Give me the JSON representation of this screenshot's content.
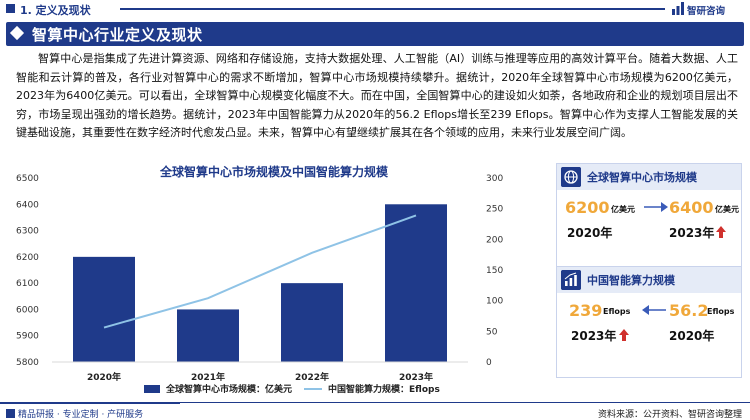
{
  "header": {
    "section_title": "1. 定义及现状",
    "brand": "智研咨询"
  },
  "banner": {
    "title": "智算中心行业定义及现状"
  },
  "paragraph": "智算中心是指集成了先进计算资源、网络和存储设施，支持大数据处理、人工智能（AI）训练与推理等应用的高效计算平台。随着大数据、人工智能和云计算的普及，各行业对智算中心的需求不断增加，智算中心市场规模持续攀升。据统计，2020年全球智算中心市场规模为6200亿美元，2023年为6400亿美元。可以看出，全球智算中心规模变化幅度不大。而在中国，全国智算中心的建设如火如荼，各地政府和企业的规划项目层出不穷，市场呈现出强劲的增长趋势。据统计，2023年中国智能算力从2020年的56.2 Eflops增长至239 Eflops。智算中心作为支撑人工智能发展的关键基础设施，其重要性在数字经济时代愈发凸显。未来，智算中心有望继续扩展其在各个领域的应用，未来行业发展空间广阔。",
  "chart_data": {
    "type": "bar",
    "title": "全球智算中心市场规模及中国智能算力规模",
    "categories": [
      "2020年",
      "2021年",
      "2022年",
      "2023年"
    ],
    "left_axis": {
      "min": 5800,
      "max": 6500,
      "ticks": [
        "5800",
        "5900",
        "6000",
        "6100",
        "6200",
        "6300",
        "6400",
        "6500"
      ]
    },
    "right_axis": {
      "min": 0,
      "max": 300,
      "ticks": [
        "0",
        "50",
        "100",
        "150",
        "200",
        "250",
        "300"
      ]
    },
    "series": [
      {
        "name": "全球智算中心市场规模：亿美元",
        "type": "bar",
        "axis": "left",
        "color": "#1f3a8a",
        "values": [
          6200,
          6000,
          6100,
          6400
        ]
      },
      {
        "name": "中国智能算力规模：Eflops",
        "type": "line",
        "axis": "right",
        "color": "#8fc3e6",
        "values": [
          56.2,
          104,
          178,
          239
        ]
      }
    ],
    "grid": false,
    "legend_position": "bottom"
  },
  "cards": {
    "global": {
      "title": "全球智算中心市场规模",
      "from_value": "6200",
      "from_unit": "亿美元",
      "from_year": "2020年",
      "to_value": "6400",
      "to_unit": "亿美元",
      "to_year": "2023年",
      "accent_color": "#f0a83a",
      "up_color": "#d0312d"
    },
    "china": {
      "title": "中国智能算力规模",
      "from_value": "239",
      "from_unit": "Eflops",
      "from_year": "2023年",
      "to_value": "56.2",
      "to_unit": "Eflops",
      "to_year": "2020年",
      "accent_color": "#f0a83a",
      "up_color": "#d0312d"
    }
  },
  "footer": {
    "left": "精品研报 · 专业定制 · 产研服务",
    "right": "资料来源：公开资料、智研咨询整理"
  }
}
